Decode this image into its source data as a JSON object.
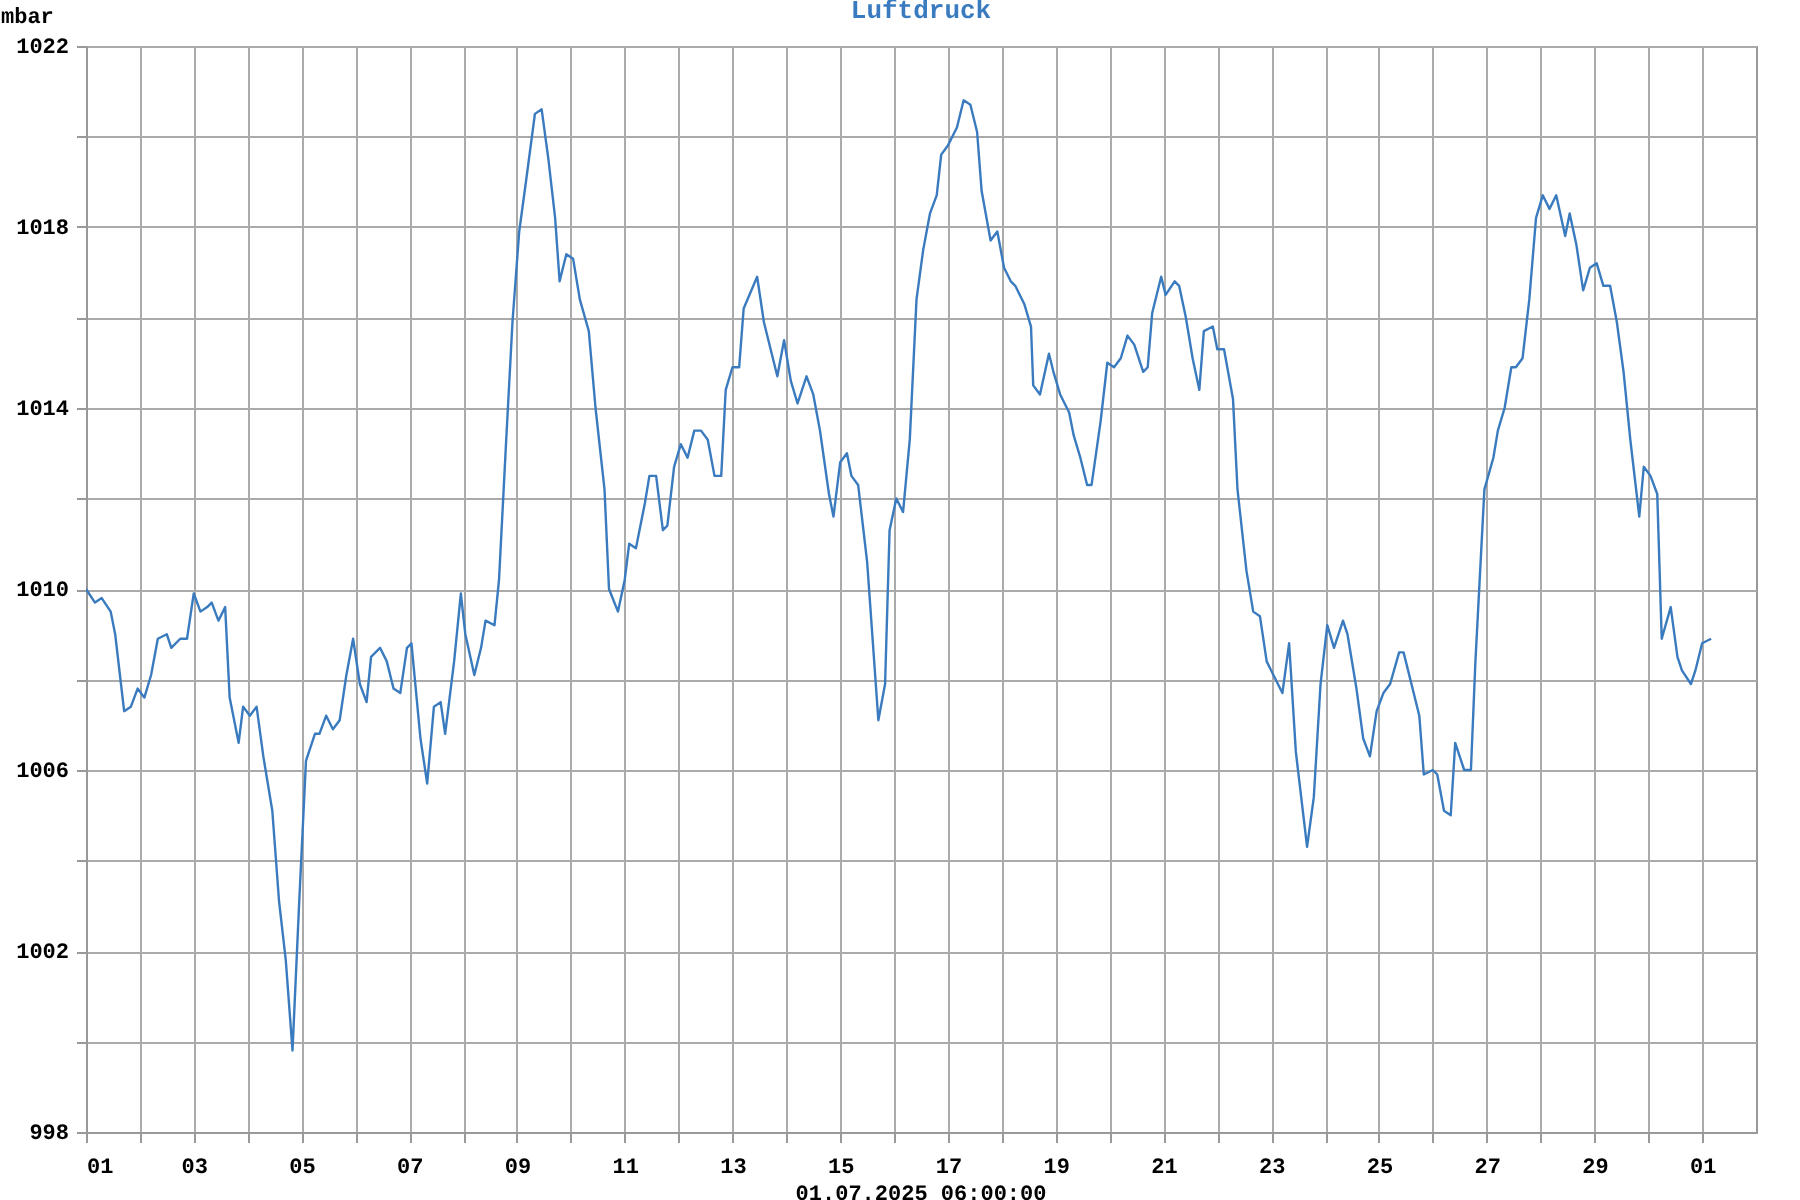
{
  "chart_data": {
    "type": "line",
    "title": "Luftdruck",
    "ylabel": "mbar",
    "annotations": [
      "01.07.2025 06:00:00"
    ],
    "x": [
      "2025-06-01T00:00",
      "2025-06-01T04:00",
      "2025-06-01T07:00",
      "2025-06-01T11:00",
      "2025-06-01T13:00",
      "2025-06-01T17:00",
      "2025-06-01T20:00",
      "2025-06-01T23:00",
      "2025-06-02T02:00",
      "2025-06-02T05:00",
      "2025-06-02T08:00",
      "2025-06-02T12:00",
      "2025-06-02T14:00",
      "2025-06-02T18:00",
      "2025-06-02T21:00",
      "2025-06-03T00:00",
      "2025-06-03T03:00",
      "2025-06-03T06:00",
      "2025-06-03T08:00",
      "2025-06-03T11:00",
      "2025-06-03T14:00",
      "2025-06-03T16:00",
      "2025-06-03T20:00",
      "2025-06-03T22:00",
      "2025-06-04T01:00",
      "2025-06-04T04:00",
      "2025-06-04T07:00",
      "2025-06-04T11:00",
      "2025-06-04T14:00",
      "2025-06-04T17:00",
      "2025-06-04T20:00",
      "2025-06-04T23:00",
      "2025-06-05T02:00",
      "2025-06-05T06:00",
      "2025-06-05T08:00",
      "2025-06-05T11:00",
      "2025-06-05T14:00",
      "2025-06-05T17:00",
      "2025-06-05T20:00",
      "2025-06-05T23:00",
      "2025-06-06T02:00",
      "2025-06-06T05:00",
      "2025-06-06T07:00",
      "2025-06-06T11:00",
      "2025-06-06T14:00",
      "2025-06-06T17:00",
      "2025-06-06T20:00",
      "2025-06-06T23:00",
      "2025-06-07T01:00",
      "2025-06-07T05:00",
      "2025-06-07T08:00",
      "2025-06-07T11:00",
      "2025-06-07T14:00",
      "2025-06-07T16:00",
      "2025-06-07T20:00",
      "2025-06-07T23:00",
      "2025-06-08T01:00",
      "2025-06-08T05:00",
      "2025-06-08T08:00",
      "2025-06-08T10:00",
      "2025-06-08T14:00",
      "2025-06-08T16:00",
      "2025-06-08T19:00",
      "2025-06-08T22:00",
      "2025-06-09T01:00",
      "2025-06-09T04:00",
      "2025-06-09T08:00",
      "2025-06-09T11:00",
      "2025-06-09T14:00",
      "2025-06-09T17:00",
      "2025-06-09T19:00",
      "2025-06-09T22:00",
      "2025-06-10T01:00",
      "2025-06-10T04:00",
      "2025-06-10T08:00",
      "2025-06-10T11:00",
      "2025-06-10T15:00",
      "2025-06-10T17:00",
      "2025-06-10T21:00",
      "2025-06-11T00:00",
      "2025-06-11T02:00",
      "2025-06-11T05:00",
      "2025-06-11T09:00",
      "2025-06-11T11:00",
      "2025-06-11T14:00",
      "2025-06-11T17:00",
      "2025-06-11T19:00",
      "2025-06-11T22:00",
      "2025-06-12T01:00",
      "2025-06-12T04:00",
      "2025-06-12T07:00",
      "2025-06-12T10:00",
      "2025-06-12T13:00",
      "2025-06-12T16:00",
      "2025-06-12T19:00",
      "2025-06-12T21:00",
      "2025-06-13T00:00",
      "2025-06-13T03:00",
      "2025-06-13T05:00",
      "2025-06-13T11:00",
      "2025-06-13T14:00",
      "2025-06-13T18:00",
      "2025-06-13T20:00",
      "2025-06-13T23:00",
      "2025-06-14T02:00",
      "2025-06-14T05:00",
      "2025-06-14T09:00",
      "2025-06-14T12:00",
      "2025-06-14T15:00",
      "2025-06-14T19:00",
      "2025-06-14T21:00",
      "2025-06-15T00:00",
      "2025-06-15T03:00",
      "2025-06-15T05:00",
      "2025-06-15T08:00",
      "2025-06-15T12:00",
      "2025-06-15T14:00",
      "2025-06-15T17:00",
      "2025-06-15T20:00",
      "2025-06-15T22:00",
      "2025-06-16T01:00",
      "2025-06-16T04:00",
      "2025-06-16T07:00",
      "2025-06-16T10:00",
      "2025-06-16T13:00",
      "2025-06-16T16:00",
      "2025-06-16T19:00",
      "2025-06-16T21:00",
      "2025-06-17T00:00",
      "2025-06-17T04:00",
      "2025-06-17T07:00",
      "2025-06-17T10:00",
      "2025-06-17T13:00",
      "2025-06-17T15:00",
      "2025-06-17T19:00",
      "2025-06-17T22:00",
      "2025-06-18T01:00",
      "2025-06-18T04:00",
      "2025-06-18T06:00",
      "2025-06-18T10:00",
      "2025-06-18T13:00",
      "2025-06-18T14:00",
      "2025-06-18T17:00",
      "2025-06-18T21:00",
      "2025-06-18T23:00",
      "2025-06-19T02:00",
      "2025-06-19T06:00",
      "2025-06-19T08:00",
      "2025-06-19T11:00",
      "2025-06-19T14:00",
      "2025-06-19T16:00",
      "2025-06-19T20:00",
      "2025-06-19T23:00",
      "2025-06-20T02:00",
      "2025-06-20T05:00",
      "2025-06-20T08:00",
      "2025-06-20T11:00",
      "2025-06-20T15:00",
      "2025-06-20T17:00",
      "2025-06-20T19:00",
      "2025-06-20T23:00",
      "2025-06-21T01:00",
      "2025-06-21T05:00",
      "2025-06-21T07:00",
      "2025-06-21T10:00",
      "2025-06-21T13:00",
      "2025-06-21T16:00",
      "2025-06-21T18:00",
      "2025-06-21T22:00",
      "2025-06-22T00:00",
      "2025-06-22T03:00",
      "2025-06-22T07:00",
      "2025-06-22T09:00",
      "2025-06-22T13:00",
      "2025-06-22T16:00",
      "2025-06-22T19:00",
      "2025-06-22T22:00",
      "2025-06-23T01:00",
      "2025-06-23T05:00",
      "2025-06-23T08:00",
      "2025-06-23T11:00",
      "2025-06-23T16:00",
      "2025-06-23T19:00",
      "2025-06-23T22:00",
      "2025-06-24T01:00",
      "2025-06-24T04:00",
      "2025-06-24T08:00",
      "2025-06-24T10:00",
      "2025-06-24T14:00",
      "2025-06-24T17:00",
      "2025-06-24T20:00",
      "2025-06-24T23:00",
      "2025-06-25T02:00",
      "2025-06-25T05:00",
      "2025-06-25T09:00",
      "2025-06-25T11:00",
      "2025-06-25T15:00",
      "2025-06-25T18:00",
      "2025-06-25T20:00",
      "2025-06-26T00:00",
      "2025-06-26T02:00",
      "2025-06-26T05:00",
      "2025-06-26T08:00",
      "2025-06-26T10:00",
      "2025-06-26T14:00",
      "2025-06-26T17:00",
      "2025-06-26T19:00",
      "2025-06-26T23:00",
      "2025-06-27T03:00",
      "2025-06-27T05:00",
      "2025-06-27T08:00",
      "2025-06-27T11:00",
      "2025-06-27T13:00",
      "2025-06-27T16:00",
      "2025-06-27T19:00",
      "2025-06-27T22:00",
      "2025-06-28T01:00",
      "2025-06-28T04:00",
      "2025-06-28T07:00",
      "2025-06-28T11:00",
      "2025-06-28T13:00",
      "2025-06-28T16:00",
      "2025-06-28T19:00",
      "2025-06-28T22:00",
      "2025-06-29T01:00",
      "2025-06-29T04:00",
      "2025-06-29T07:00",
      "2025-06-29T10:00",
      "2025-06-29T13:00",
      "2025-06-29T16:00",
      "2025-06-29T20:00",
      "2025-06-29T22:00",
      "2025-06-30T01:00",
      "2025-06-30T04:00",
      "2025-06-30T06:00",
      "2025-06-30T10:00",
      "2025-06-30T13:00",
      "2025-06-30T15:00",
      "2025-06-30T19:00",
      "2025-06-30T21:00",
      "2025-07-01T00:00",
      "2025-07-01T04:00"
    ],
    "series": [
      {
        "color": "#3a7bbf",
        "values": [
          1010.0,
          1009.7,
          1009.8,
          1009.5,
          1009.0,
          1007.3,
          1007.4,
          1007.8,
          1007.6,
          1008.1,
          1008.9,
          1009.0,
          1008.7,
          1008.9,
          1008.9,
          1009.9,
          1009.5,
          1009.6,
          1009.7,
          1009.3,
          1009.6,
          1007.6,
          1006.6,
          1007.4,
          1007.2,
          1007.4,
          1006.3,
          1005.1,
          1003.1,
          1001.8,
          999.8,
          1003.1,
          1006.2,
          1006.8,
          1006.8,
          1007.2,
          1006.9,
          1007.1,
          1008.1,
          1008.9,
          1007.9,
          1007.5,
          1008.5,
          1008.7,
          1008.4,
          1007.8,
          1007.7,
          1008.7,
          1008.8,
          1006.7,
          1005.7,
          1007.4,
          1007.5,
          1006.8,
          1008.4,
          1009.9,
          1009.0,
          1008.1,
          1008.7,
          1009.3,
          1009.2,
          1010.2,
          1013.1,
          1015.9,
          1017.9,
          1019.0,
          1020.5,
          1020.6,
          1019.5,
          1018.2,
          1016.8,
          1017.4,
          1017.3,
          1016.4,
          1015.7,
          1014.0,
          1012.2,
          1010.0,
          1009.5,
          1010.2,
          1011.0,
          1010.9,
          1011.9,
          1012.5,
          1012.5,
          1011.3,
          1011.4,
          1012.7,
          1013.2,
          1012.9,
          1013.5,
          1013.5,
          1013.3,
          1012.5,
          1012.5,
          1014.4,
          1014.9,
          1014.9,
          1016.2,
          1016.9,
          1015.9,
          1015.1,
          1014.7,
          1015.5,
          1014.6,
          1014.1,
          1014.7,
          1014.3,
          1013.5,
          1012.1,
          1011.6,
          1012.8,
          1013.0,
          1012.5,
          1012.3,
          1010.6,
          1009.2,
          1007.1,
          1007.9,
          1011.3,
          1012.0,
          1011.7,
          1013.3,
          1016.4,
          1017.5,
          1018.3,
          1018.7,
          1019.6,
          1019.8,
          1020.2,
          1020.8,
          1020.7,
          1020.1,
          1018.8,
          1017.7,
          1017.9,
          1017.1,
          1016.8,
          1016.7,
          1016.3,
          1015.8,
          1014.5,
          1014.3,
          1015.2,
          1014.8,
          1014.3,
          1013.9,
          1013.4,
          1012.9,
          1012.3,
          1012.3,
          1013.7,
          1015.0,
          1014.9,
          1015.1,
          1015.6,
          1015.4,
          1014.8,
          1014.9,
          1016.1,
          1016.9,
          1016.5,
          1016.8,
          1016.7,
          1016.0,
          1015.1,
          1014.4,
          1015.7,
          1015.8,
          1015.3,
          1015.3,
          1014.2,
          1012.2,
          1010.4,
          1009.5,
          1009.4,
          1008.4,
          1008.1,
          1007.7,
          1008.8,
          1006.4,
          1004.3,
          1005.4,
          1007.9,
          1009.2,
          1008.7,
          1009.3,
          1009.0,
          1007.8,
          1006.7,
          1006.3,
          1007.3,
          1007.7,
          1007.9,
          1008.6,
          1008.6,
          1007.8,
          1007.2,
          1005.9,
          1006.0,
          1005.9,
          1005.1,
          1005.0,
          1006.6,
          1006.0,
          1006.0,
          1008.4,
          1012.2,
          1012.9,
          1013.5,
          1014.0,
          1014.9,
          1014.9,
          1015.1,
          1016.4,
          1018.2,
          1018.7,
          1018.4,
          1018.7,
          1017.8,
          1018.3,
          1017.6,
          1016.6,
          1017.1,
          1017.2,
          1016.7,
          1016.7,
          1015.9,
          1014.8,
          1013.3,
          1011.6,
          1012.7,
          1012.5,
          1012.1,
          1008.9,
          1009.6,
          1008.5,
          1008.2,
          1007.9,
          1008.2,
          1008.8,
          1008.9
        ]
      }
    ],
    "xlim": [
      "2025-06-01T00:00",
      "2025-07-02T00:00"
    ],
    "xticks": [
      {
        "value": "2025-06-01",
        "label": "01"
      },
      {
        "value": "2025-06-02",
        "label": null
      },
      {
        "value": "2025-06-03",
        "label": "03"
      },
      {
        "value": "2025-06-04",
        "label": null
      },
      {
        "value": "2025-06-05",
        "label": "05"
      },
      {
        "value": "2025-06-06",
        "label": null
      },
      {
        "value": "2025-06-07",
        "label": "07"
      },
      {
        "value": "2025-06-08",
        "label": null
      },
      {
        "value": "2025-06-09",
        "label": "09"
      },
      {
        "value": "2025-06-10",
        "label": null
      },
      {
        "value": "2025-06-11",
        "label": "11"
      },
      {
        "value": "2025-06-12",
        "label": null
      },
      {
        "value": "2025-06-13",
        "label": "13"
      },
      {
        "value": "2025-06-14",
        "label": null
      },
      {
        "value": "2025-06-15",
        "label": "15"
      },
      {
        "value": "2025-06-16",
        "label": null
      },
      {
        "value": "2025-06-17",
        "label": "17"
      },
      {
        "value": "2025-06-18",
        "label": null
      },
      {
        "value": "2025-06-19",
        "label": "19"
      },
      {
        "value": "2025-06-20",
        "label": null
      },
      {
        "value": "2025-06-21",
        "label": "21"
      },
      {
        "value": "2025-06-22",
        "label": null
      },
      {
        "value": "2025-06-23",
        "label": "23"
      },
      {
        "value": "2025-06-24",
        "label": null
      },
      {
        "value": "2025-06-25",
        "label": "25"
      },
      {
        "value": "2025-06-26",
        "label": null
      },
      {
        "value": "2025-06-27",
        "label": "27"
      },
      {
        "value": "2025-06-28",
        "label": null
      },
      {
        "value": "2025-06-29",
        "label": "29"
      },
      {
        "value": "2025-06-30",
        "label": null
      },
      {
        "value": "2025-07-01",
        "label": "01"
      }
    ],
    "ylim": [
      998,
      1022
    ],
    "yticks": [
      998,
      {
        "value": 1000,
        "label": null
      },
      1002,
      {
        "value": 1004,
        "label": null
      },
      1006,
      {
        "value": 1008,
        "label": null
      },
      1010,
      {
        "value": 1012,
        "label": null
      },
      1014,
      {
        "value": 1016,
        "label": null
      },
      1018,
      {
        "value": 1020,
        "label": null
      },
      1022
    ],
    "grid": true
  }
}
